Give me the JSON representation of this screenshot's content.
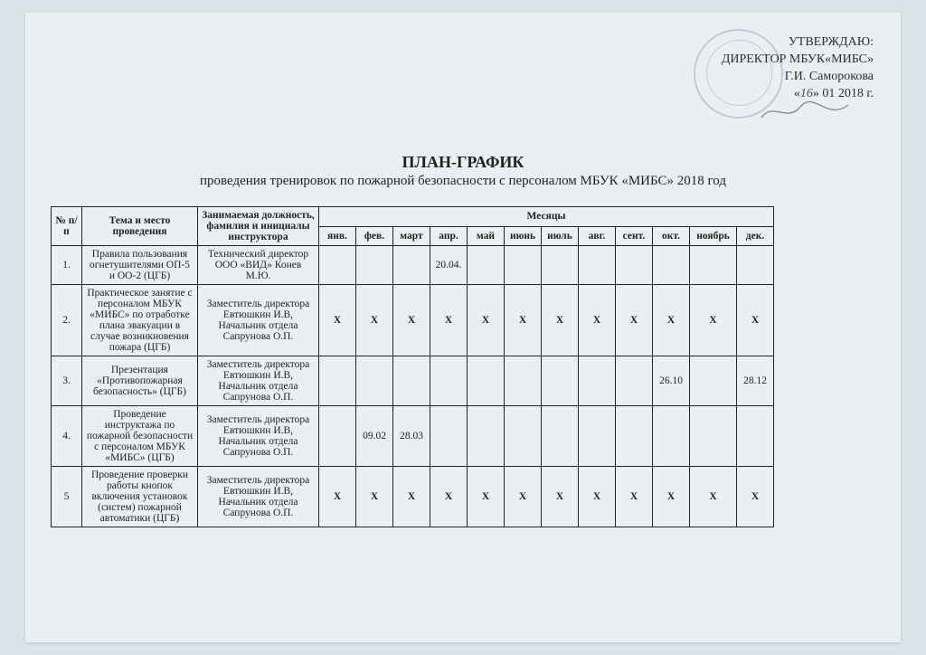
{
  "approval": {
    "line1": "УТВЕРЖДАЮ:",
    "line2": "ДИРЕКТОР  МБУК«МИБС»",
    "line3": "Г.И. Саморокова",
    "date_prefix": "«",
    "date_day": "16",
    "date_mid": "» 01 ",
    "date_year": "2018 г."
  },
  "title": {
    "main": "ПЛАН-ГРАФИК",
    "sub": "проведения тренировок по пожарной безопасности с персоналом МБУК «МИБС» 2018 год"
  },
  "table": {
    "headers": {
      "num": "№ п/п",
      "topic": "Тема и место проведения",
      "instructor": "Занимаемая должность, фамилия и инициалы инструктора",
      "months_group": "Месяцы",
      "months": [
        "янв.",
        "фев.",
        "март",
        "апр.",
        "май",
        "июнь",
        "июль",
        "авг.",
        "сент.",
        "окт.",
        "ноябрь",
        "дек."
      ]
    },
    "columns": {
      "num_width": 34,
      "topic_width": 128,
      "instructor_width": 134,
      "month_width": 41,
      "nov_width": 52
    },
    "border_color": "#222222",
    "text_color": "#222222",
    "font_size": 11.5,
    "rows": [
      {
        "num": "1.",
        "topic": "Правила пользования огнетушителями ОП-5 и ОО-2 (ЦГБ)",
        "instructor": "Технический директор ООО «ВИД» Конев М.Ю.",
        "cells": [
          "",
          "",
          "",
          "20.04.",
          "",
          "",
          "",
          "",
          "",
          "",
          "",
          ""
        ]
      },
      {
        "num": "2.",
        "topic": "Практическое занятие с персоналом МБУК «МИБС» по отработке плана эвакуации в случае возникновения пожара (ЦГБ)",
        "instructor": "Заместитель директора Евтюшкин И.В, Начальник отдела Сапрунова О.П.",
        "cells": [
          "X",
          "X",
          "X",
          "X",
          "X",
          "X",
          "X",
          "X",
          "X",
          "X",
          "X",
          "X"
        ]
      },
      {
        "num": "3.",
        "topic": "Презентация «Противопожарная безопасность» (ЦГБ)",
        "instructor": "Заместитель директора Евтюшкин И.В, Начальник отдела Сапрунова О.П.",
        "cells": [
          "",
          "",
          "",
          "",
          "",
          "",
          "",
          "",
          "",
          "26.10",
          "",
          "28.12"
        ]
      },
      {
        "num": "4.",
        "topic": "Проведение инструктажа по пожарной безопасности с персоналом МБУК «МИБС» (ЦГБ)",
        "instructor": "Заместитель директора Евтюшкин И.В, Начальник отдела Сапрунова О.П.",
        "cells": [
          "",
          "09.02",
          "28.03",
          "",
          "",
          "",
          "",
          "",
          "",
          "",
          "",
          ""
        ]
      },
      {
        "num": "5",
        "topic": "Проведение проверки работы кнопок включения установок (систем) пожарной автоматики (ЦГБ)",
        "instructor": "Заместитель директора Евтюшкин И.В, Начальник отдела Сапрунова О.П.",
        "cells": [
          "X",
          "X",
          "X",
          "X",
          "X",
          "X",
          "X",
          "X",
          "X",
          "X",
          "X",
          "X"
        ]
      }
    ]
  },
  "colors": {
    "page_bg": "#eaf0f2",
    "body_bg": "#d8e4e8",
    "stamp": "#4a6aa0",
    "text": "#222222"
  }
}
